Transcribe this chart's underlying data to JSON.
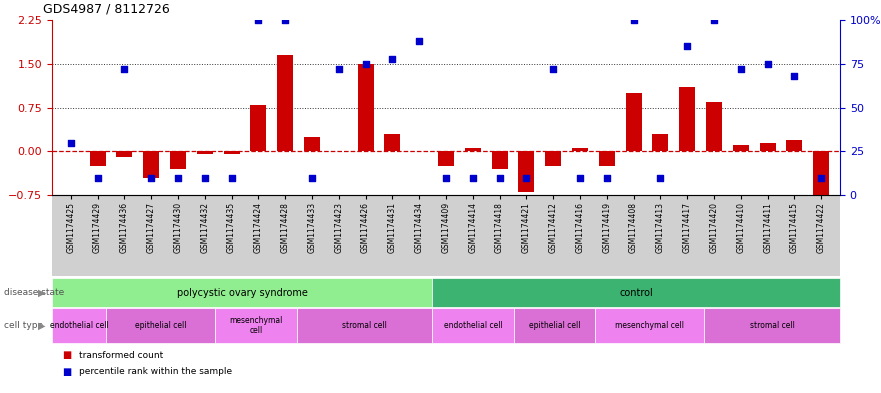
{
  "title": "GDS4987 / 8112726",
  "samples": [
    "GSM1174425",
    "GSM1174429",
    "GSM1174436",
    "GSM1174427",
    "GSM1174430",
    "GSM1174432",
    "GSM1174435",
    "GSM1174424",
    "GSM1174428",
    "GSM1174433",
    "GSM1174423",
    "GSM1174426",
    "GSM1174431",
    "GSM1174434",
    "GSM1174409",
    "GSM1174414",
    "GSM1174418",
    "GSM1174421",
    "GSM1174412",
    "GSM1174416",
    "GSM1174419",
    "GSM1174408",
    "GSM1174413",
    "GSM1174417",
    "GSM1174420",
    "GSM1174410",
    "GSM1174411",
    "GSM1174415",
    "GSM1174422"
  ],
  "transformed_count": [
    0.0,
    -0.25,
    -0.1,
    -0.45,
    -0.3,
    -0.05,
    -0.05,
    0.8,
    1.65,
    0.25,
    0.0,
    1.5,
    0.3,
    0.0,
    -0.25,
    0.05,
    -0.3,
    -0.7,
    -0.25,
    0.05,
    -0.25,
    1.0,
    0.3,
    1.1,
    0.85,
    0.1,
    0.15,
    0.2,
    -0.75
  ],
  "percentile_rank": [
    30,
    10,
    72,
    10,
    10,
    10,
    10,
    100,
    100,
    10,
    72,
    75,
    78,
    88,
    10,
    10,
    10,
    10,
    72,
    10,
    10,
    100,
    10,
    85,
    100,
    72,
    75,
    68,
    10
  ],
  "disease_state_groups": [
    {
      "label": "polycystic ovary syndrome",
      "start": 0,
      "end": 14,
      "color": "#90ee90"
    },
    {
      "label": "control",
      "start": 14,
      "end": 29,
      "color": "#3cb371"
    }
  ],
  "cell_type_groups": [
    {
      "label": "endothelial cell",
      "start": 0,
      "end": 2,
      "color": "#ee82ee"
    },
    {
      "label": "epithelial cell",
      "start": 2,
      "end": 6,
      "color": "#da70d6"
    },
    {
      "label": "mesenchymal\ncell",
      "start": 6,
      "end": 9,
      "color": "#ee82ee"
    },
    {
      "label": "stromal cell",
      "start": 9,
      "end": 14,
      "color": "#da70d6"
    },
    {
      "label": "endothelial cell",
      "start": 14,
      "end": 17,
      "color": "#ee82ee"
    },
    {
      "label": "epithelial cell",
      "start": 17,
      "end": 20,
      "color": "#da70d6"
    },
    {
      "label": "mesenchymal cell",
      "start": 20,
      "end": 24,
      "color": "#ee82ee"
    },
    {
      "label": "stromal cell",
      "start": 24,
      "end": 29,
      "color": "#da70d6"
    }
  ],
  "ylim_left": [
    -0.75,
    2.25
  ],
  "ylim_right": [
    0,
    100
  ],
  "yticks_left": [
    -0.75,
    0.0,
    0.75,
    1.5,
    2.25
  ],
  "yticks_right": [
    0,
    25,
    50,
    75,
    100
  ],
  "bar_color": "#cc0000",
  "scatter_color": "#0000cc",
  "hline_color": "#cc0000",
  "dotted_line_color": "#333333",
  "background_color": "#ffffff",
  "tick_label_color_left": "#cc0000",
  "tick_label_color_right": "#0000cc",
  "xtick_bg_color": "#d0d0d0"
}
